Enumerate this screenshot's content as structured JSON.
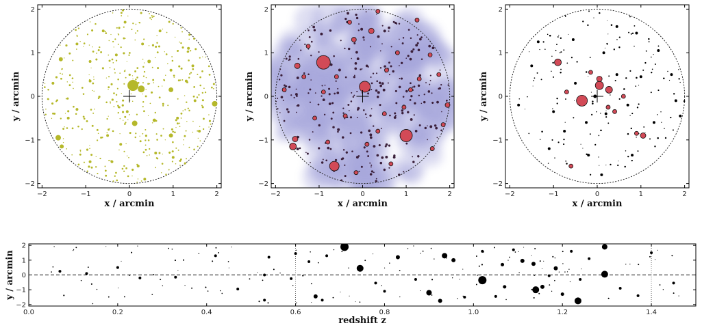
{
  "chart_data": [
    {
      "type": "scatter",
      "panel": "field-galaxies",
      "xlabel": "x / arcmin",
      "ylabel": "y / arcmin",
      "xlim": [
        -2.1,
        2.1
      ],
      "ylim": [
        -2.1,
        2.1
      ],
      "xticks": [
        "−2",
        "−1",
        "0",
        "1",
        "2"
      ],
      "yticks": [
        "−2",
        "−1",
        "0",
        "1",
        "2"
      ],
      "field_radius": 2.0,
      "marker_color": "#b5b82a",
      "points": [
        [
          0.08,
          0.25,
          8
        ],
        [
          0.27,
          0.17,
          5
        ],
        [
          0.12,
          -0.62,
          4
        ],
        [
          0.95,
          0.15,
          3.5
        ],
        [
          1.95,
          -0.17,
          4
        ],
        [
          -1.63,
          -0.95,
          4
        ],
        [
          -1.55,
          -1.15,
          3
        ],
        [
          -1.57,
          0.85,
          3
        ],
        [
          0.95,
          -0.9,
          3
        ],
        [
          0.57,
          -0.55,
          2.5
        ],
        [
          0.45,
          0.8,
          2.5
        ],
        [
          -0.3,
          0.95,
          2
        ],
        [
          -0.9,
          0.8,
          2
        ],
        [
          -0.9,
          0.35,
          2
        ],
        [
          -1.2,
          -0.3,
          2
        ],
        [
          -0.5,
          -0.9,
          2
        ],
        [
          -0.4,
          -1.5,
          2
        ],
        [
          0.2,
          -1.6,
          2
        ],
        [
          0.6,
          -1.3,
          2
        ],
        [
          1.1,
          -0.5,
          2
        ],
        [
          1.3,
          0.35,
          2
        ],
        [
          1.5,
          -0.1,
          2
        ],
        [
          -0.05,
          -0.35,
          2
        ],
        [
          0.7,
          1.5,
          2
        ],
        [
          -0.6,
          1.5,
          2
        ],
        [
          0.95,
          0.6,
          2
        ],
        [
          1.35,
          1.1,
          2
        ],
        [
          -1.2,
          1.2,
          2
        ],
        [
          -1.75,
          0.3,
          2
        ],
        [
          -1.4,
          -0.5,
          2
        ],
        [
          -0.9,
          -1.5,
          2
        ],
        [
          0.3,
          1.2,
          2
        ],
        [
          -0.2,
          -1.1,
          2
        ],
        [
          1.0,
          -1.4,
          2
        ],
        [
          1.6,
          -0.8,
          2
        ],
        [
          -0.1,
          1.7,
          2
        ],
        [
          0.35,
          -1.9,
          2
        ],
        [
          1.45,
          0.7,
          2
        ]
      ],
      "center_marker": [
        0,
        0
      ]
    },
    {
      "type": "scatter",
      "panel": "smoothed-density",
      "xlabel": "x / arcmin",
      "ylabel": "y / arcmin",
      "xlim": [
        -2.1,
        2.1
      ],
      "ylim": [
        -2.1,
        2.1
      ],
      "xticks": [
        "−2",
        "−1",
        "0",
        "1",
        "2"
      ],
      "yticks": [
        "−2",
        "−1",
        "0",
        "1",
        "2"
      ],
      "field_radius": 2.0,
      "density_color": "#5b5bbd",
      "marker_color": "#d24a57",
      "points": [
        [
          -0.9,
          0.78,
          10
        ],
        [
          0.05,
          0.22,
          8
        ],
        [
          1.0,
          -0.9,
          9
        ],
        [
          -0.65,
          -1.6,
          7
        ],
        [
          -1.6,
          -1.15,
          5
        ],
        [
          -1.5,
          0.7,
          4
        ],
        [
          0.2,
          1.5,
          4
        ],
        [
          1.25,
          1.75,
          3
        ],
        [
          1.95,
          -0.2,
          3.5
        ],
        [
          -1.55,
          -0.98,
          4
        ],
        [
          -0.2,
          1.3,
          3.5
        ],
        [
          -0.9,
          0.1,
          3
        ],
        [
          0.55,
          0.6,
          3
        ],
        [
          1.3,
          0.4,
          3
        ],
        [
          -0.4,
          -0.45,
          3
        ],
        [
          0.5,
          -0.4,
          3
        ],
        [
          -1.1,
          -0.5,
          3
        ],
        [
          0.8,
          1.0,
          3
        ],
        [
          -0.3,
          1.7,
          3
        ],
        [
          0.65,
          -1.55,
          3
        ],
        [
          1.6,
          -1.2,
          3
        ],
        [
          1.75,
          0.5,
          3
        ],
        [
          -1.8,
          0.15,
          3
        ],
        [
          0.1,
          -1.1,
          3
        ],
        [
          -0.6,
          0.45,
          3
        ],
        [
          1.1,
          0.15,
          3
        ],
        [
          -1.25,
          1.15,
          3
        ],
        [
          0.35,
          1.95,
          3
        ],
        [
          -0.8,
          -1.05,
          3
        ],
        [
          0.95,
          -0.25,
          3
        ],
        [
          1.55,
          0.95,
          3
        ],
        [
          -0.15,
          -1.75,
          3
        ],
        [
          0.35,
          -0.8,
          3
        ],
        [
          -1.35,
          0.45,
          3
        ],
        [
          1.85,
          -0.65,
          3
        ]
      ],
      "center_marker": [
        0,
        0
      ]
    },
    {
      "type": "scatter",
      "panel": "lens-plane",
      "xlabel": "x / arcmin",
      "ylabel": "y / arcmin",
      "xlim": [
        -2.1,
        2.1
      ],
      "ylim": [
        -2.1,
        2.1
      ],
      "xticks": [
        "−2",
        "−1",
        "0",
        "1",
        "2"
      ],
      "yticks": [
        "−2",
        "−1",
        "0",
        "1",
        "2"
      ],
      "field_radius": 2.0,
      "marker_color": "#d24a57",
      "points": [
        [
          -0.35,
          -0.1,
          8
        ],
        [
          0.05,
          0.25,
          6
        ],
        [
          0.27,
          0.15,
          5
        ],
        [
          -0.9,
          0.78,
          5
        ],
        [
          0.05,
          0.4,
          4
        ],
        [
          1.05,
          -0.9,
          4
        ],
        [
          -0.6,
          -1.6,
          3
        ],
        [
          0.4,
          -0.35,
          3
        ],
        [
          -0.7,
          0.1,
          3
        ],
        [
          0.6,
          0.0,
          3
        ],
        [
          0.25,
          -0.25,
          3
        ],
        [
          -0.15,
          0.55,
          3
        ],
        [
          0.9,
          -0.85,
          3
        ]
      ],
      "black_points": [
        [
          -0.05,
          0.0,
          2.5
        ],
        [
          0.2,
          -0.4,
          2
        ],
        [
          -0.5,
          0.3,
          2
        ],
        [
          0.45,
          0.5,
          2
        ],
        [
          -0.25,
          -0.6,
          2
        ],
        [
          0.7,
          -0.2,
          2
        ],
        [
          1.0,
          0.45,
          2
        ],
        [
          -1.0,
          -0.35,
          2
        ],
        [
          0.15,
          1.0,
          2
        ],
        [
          -0.55,
          1.3,
          2
        ],
        [
          1.4,
          1.05,
          2
        ],
        [
          -1.5,
          0.7,
          2
        ],
        [
          0.8,
          -1.35,
          2
        ],
        [
          -0.2,
          -1.35,
          2
        ],
        [
          1.8,
          -0.1,
          2
        ],
        [
          -1.8,
          -0.2,
          2
        ],
        [
          0.45,
          1.6,
          2
        ],
        [
          -1.1,
          -1.2,
          2
        ],
        [
          1.3,
          -0.6,
          2
        ],
        [
          -0.75,
          -0.8,
          2
        ],
        [
          1.7,
          0.5,
          2
        ],
        [
          0.1,
          -1.8,
          2
        ],
        [
          -1.35,
          1.25,
          2
        ],
        [
          0.9,
          1.45,
          2
        ],
        [
          1.9,
          -0.45,
          2
        ]
      ],
      "center_marker": [
        0,
        0
      ]
    },
    {
      "type": "scatter",
      "panel": "redshift-distribution",
      "xlabel": "redshift z",
      "ylabel": "y / arcmin",
      "xlim": [
        0.0,
        1.5
      ],
      "ylim": [
        -2.1,
        2.1
      ],
      "xticks": [
        "0.0",
        "0.2",
        "0.4",
        "0.6",
        "0.8",
        "1.0",
        "1.2",
        "1.4"
      ],
      "yticks": [
        "−2",
        "−1",
        "0",
        "1",
        "2"
      ],
      "reference_z": [
        0.6,
        1.4
      ],
      "marker_color": "#000000",
      "points": [
        [
          0.71,
          1.9,
          6
        ],
        [
          0.745,
          0.45,
          5
        ],
        [
          0.935,
          1.3,
          4
        ],
        [
          0.955,
          1.0,
          3
        ],
        [
          1.02,
          -0.35,
          6
        ],
        [
          0.9,
          -1.2,
          4
        ],
        [
          0.925,
          -1.75,
          3
        ],
        [
          1.235,
          -1.75,
          5
        ],
        [
          1.295,
          0.05,
          5
        ],
        [
          1.295,
          1.9,
          4
        ],
        [
          1.14,
          -1.0,
          5
        ],
        [
          1.155,
          -0.8,
          3
        ],
        [
          1.185,
          0.45,
          3
        ],
        [
          1.11,
          0.95,
          3
        ],
        [
          1.135,
          0.75,
          3
        ],
        [
          0.645,
          -1.45,
          3
        ],
        [
          0.83,
          1.2,
          3
        ],
        [
          1.065,
          0.7,
          2.5
        ],
        [
          1.2,
          -1.3,
          2.5
        ],
        [
          1.07,
          -0.8,
          2.5
        ],
        [
          0.47,
          -0.95,
          2
        ],
        [
          0.53,
          -1.7,
          2
        ],
        [
          0.54,
          1.2,
          2
        ],
        [
          0.13,
          0.1,
          2
        ],
        [
          0.07,
          0.25,
          2
        ],
        [
          0.2,
          0.5,
          2
        ],
        [
          0.25,
          -0.2,
          2
        ],
        [
          0.33,
          -0.15,
          2
        ],
        [
          0.42,
          1.3,
          2
        ],
        [
          0.53,
          0.0,
          2
        ],
        [
          0.59,
          -0.25,
          2
        ],
        [
          0.6,
          1.45,
          2
        ],
        [
          0.63,
          0.9,
          2
        ],
        [
          0.67,
          1.3,
          2
        ],
        [
          0.66,
          -1.7,
          2
        ],
        [
          0.78,
          -0.55,
          2
        ],
        [
          0.8,
          -1.1,
          2
        ],
        [
          0.87,
          -0.3,
          2
        ],
        [
          0.98,
          -1.5,
          2
        ],
        [
          1.02,
          1.6,
          2
        ],
        [
          1.05,
          -1.45,
          2
        ],
        [
          1.09,
          1.7,
          2
        ],
        [
          1.17,
          -0.05,
          2
        ],
        [
          1.22,
          1.6,
          2
        ],
        [
          1.24,
          -0.3,
          2
        ],
        [
          1.26,
          1.1,
          2
        ],
        [
          1.33,
          -0.9,
          2
        ],
        [
          1.37,
          -1.4,
          2
        ],
        [
          1.4,
          1.5,
          2
        ],
        [
          1.45,
          -0.55,
          2
        ]
      ]
    }
  ]
}
